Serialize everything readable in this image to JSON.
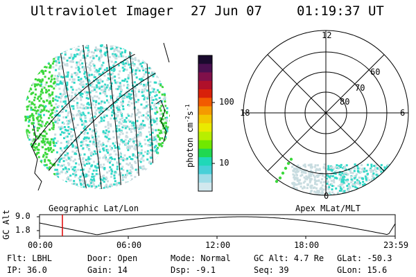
{
  "header": {
    "instrument": "Ultraviolet Imager",
    "date": "27 Jun 07",
    "time": "01:19:37 UT"
  },
  "geo_panel": {
    "caption": "Geographic Lat/Lon"
  },
  "apex_panel": {
    "caption": "Apex MLat/MLT",
    "mlt_labels": [
      "12",
      "18",
      "6",
      "0"
    ],
    "mlat_labels": [
      "60",
      "70",
      "80"
    ]
  },
  "colorbar": {
    "unit": "photon cm",
    "unit_exp": "-2",
    "unit_s": "s",
    "unit_s_exp": "-1",
    "tick_labels": [
      "100",
      "10"
    ],
    "colors": [
      "#1a0a2e",
      "#4a1050",
      "#80104a",
      "#b0102a",
      "#d8200a",
      "#f25a00",
      "#f59a00",
      "#f2c800",
      "#eaea00",
      "#b8ee00",
      "#70e800",
      "#20d850",
      "#20d8b8",
      "#48d0d8",
      "#a0dde8",
      "#d2e8ee"
    ]
  },
  "altitude_plot": {
    "ylabel": "GC Alt",
    "y_ticks": [
      "9.0",
      "1.8"
    ],
    "x_ticks": [
      "00:00",
      "06:00",
      "12:00",
      "18:00",
      "23:59"
    ]
  },
  "footer": {
    "filter": "Flt: LBHL",
    "door": "Door: Open",
    "mode": "Mode: Normal",
    "gc_alt": "GC Alt: 4.7 Re",
    "glat": "GLat: -50.3",
    "ip": "IP: 36.0",
    "gain": "Gain: 14",
    "dsp": "Dsp:   -9.1",
    "seq": "Seq: 39",
    "glon": "GLon:  15.6"
  },
  "colors": {
    "green_patch": "#3cd83c",
    "cyan_speckle": "#30d8c8",
    "pale_speckle": "#c8dce0",
    "marker": "#e00000"
  }
}
